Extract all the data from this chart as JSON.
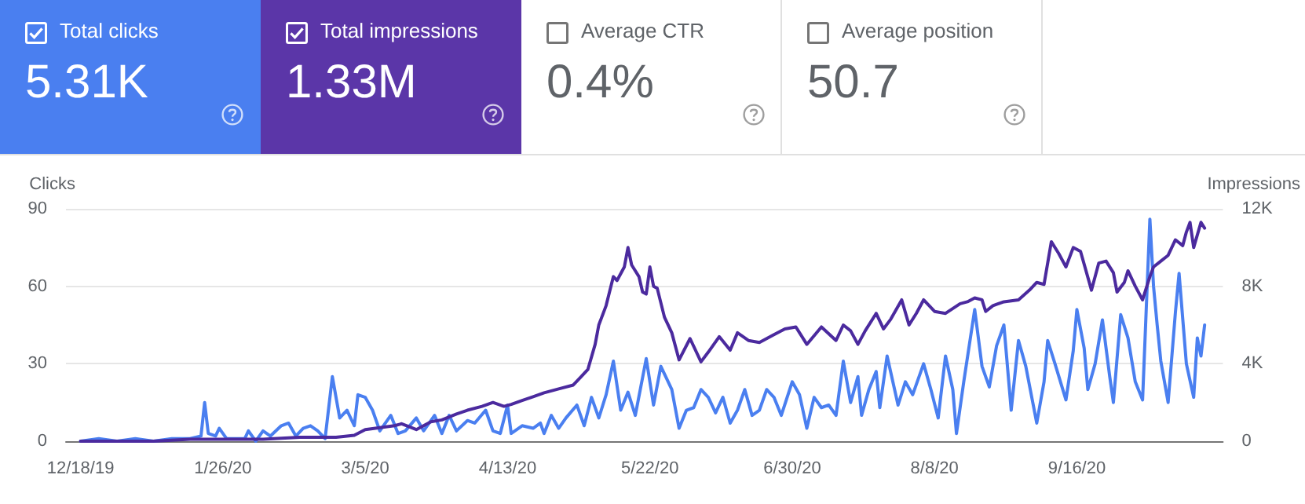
{
  "chart_data": [
    {
      "type": "other",
      "annotations": [
        "Total clicks",
        "5.31K",
        "Total impressions",
        "1.33M",
        "Average CTR",
        "0.4%",
        "Average position",
        "50.7"
      ],
      "colors": [
        "#4a7ff0",
        "#5b36a8",
        null,
        null
      ]
    },
    {
      "type": "line",
      "ylabel": "Clicks",
      "y2label": "Impressions",
      "xlim": [
        "2019-12-14",
        "2020-10-26"
      ],
      "xticks": [
        {
          "value": "2019-12-18",
          "label": "12/18/19"
        },
        {
          "value": "2020-01-26",
          "label": "1/26/20"
        },
        {
          "value": "2020-03-05",
          "label": "3/5/20"
        },
        {
          "value": "2020-04-13",
          "label": "4/13/20"
        },
        {
          "value": "2020-05-22",
          "label": "5/22/20"
        },
        {
          "value": "2020-06-30",
          "label": "6/30/20"
        },
        {
          "value": "2020-08-08",
          "label": "8/8/20"
        },
        {
          "value": "2020-09-16",
          "label": "9/16/20"
        }
      ],
      "ylim": [
        0,
        90
      ],
      "yticks": [
        0,
        30,
        60,
        90
      ],
      "y2lim": [
        0,
        12000
      ],
      "y2ticks": [
        0,
        {
          "value": 4000,
          "label": "4K"
        },
        {
          "value": 8000,
          "label": "8K"
        },
        {
          "value": 12000,
          "label": "12K"
        }
      ],
      "grid": "y",
      "series": [
        {
          "color": "#4a7ff0",
          "x": [
            "2019-12-18",
            "2019-12-23",
            "2019-12-28",
            "2020-01-02",
            "2020-01-07",
            "2020-01-12",
            "2020-01-17",
            "2020-01-20",
            "2020-01-21",
            "2020-01-22",
            "2020-01-24",
            "2020-01-25",
            "2020-01-27",
            "2020-02-01",
            "2020-02-02",
            "2020-02-04",
            "2020-02-06",
            "2020-02-08",
            "2020-02-11",
            "2020-02-13",
            "2020-02-15",
            "2020-02-17",
            "2020-02-19",
            "2020-02-21",
            "2020-02-23",
            "2020-02-25",
            "2020-02-27",
            "2020-02-29",
            "2020-03-02",
            "2020-03-03",
            "2020-03-05",
            "2020-03-07",
            "2020-03-09",
            "2020-03-12",
            "2020-03-14",
            "2020-03-16",
            "2020-03-19",
            "2020-03-21",
            "2020-03-24",
            "2020-03-26",
            "2020-03-28",
            "2020-03-30",
            "2020-04-02",
            "2020-04-04",
            "2020-04-07",
            "2020-04-09",
            "2020-04-11",
            "2020-04-13",
            "2020-04-14",
            "2020-04-17",
            "2020-04-20",
            "2020-04-22",
            "2020-04-23",
            "2020-04-25",
            "2020-04-27",
            "2020-04-29",
            "2020-05-02",
            "2020-05-04",
            "2020-05-06",
            "2020-05-08",
            "2020-05-10",
            "2020-05-12",
            "2020-05-14",
            "2020-05-16",
            "2020-05-18",
            "2020-05-21",
            "2020-05-23",
            "2020-05-25",
            "2020-05-28",
            "2020-05-30",
            "2020-06-01",
            "2020-06-03",
            "2020-06-05",
            "2020-06-07",
            "2020-06-09",
            "2020-06-11",
            "2020-06-13",
            "2020-06-15",
            "2020-06-17",
            "2020-06-19",
            "2020-06-21",
            "2020-06-23",
            "2020-06-25",
            "2020-06-27",
            "2020-06-30",
            "2020-07-02",
            "2020-07-04",
            "2020-07-06",
            "2020-07-08",
            "2020-07-10",
            "2020-07-12",
            "2020-07-14",
            "2020-07-16",
            "2020-07-18",
            "2020-07-19",
            "2020-07-21",
            "2020-07-23",
            "2020-07-24",
            "2020-07-26",
            "2020-07-29",
            "2020-07-31",
            "2020-08-02",
            "2020-08-05",
            "2020-08-07",
            "2020-08-09",
            "2020-08-11",
            "2020-08-13",
            "2020-08-14",
            "2020-08-16",
            "2020-08-19",
            "2020-08-21",
            "2020-08-23",
            "2020-08-25",
            "2020-08-27",
            "2020-08-29",
            "2020-08-31",
            "2020-09-02",
            "2020-09-05",
            "2020-09-07",
            "2020-09-08",
            "2020-09-10",
            "2020-09-13",
            "2020-09-15",
            "2020-09-16",
            "2020-09-18",
            "2020-09-19",
            "2020-09-21",
            "2020-09-23",
            "2020-09-25",
            "2020-09-26",
            "2020-09-28",
            "2020-09-30",
            "2020-10-02",
            "2020-10-04",
            "2020-10-06",
            "2020-10-07",
            "2020-10-08",
            "2020-10-09",
            "2020-10-11",
            "2020-10-13",
            "2020-10-14",
            "2020-10-16",
            "2020-10-18",
            "2020-10-19",
            "2020-10-20",
            "2020-10-21"
          ],
          "values": [
            0,
            1,
            0,
            1,
            0,
            1,
            1,
            2,
            15,
            3,
            2,
            5,
            1,
            1,
            4,
            0,
            4,
            2,
            6,
            7,
            2,
            5,
            6,
            4,
            1,
            25,
            9,
            12,
            6,
            18,
            17,
            12,
            4,
            10,
            3,
            4,
            9,
            4,
            10,
            3,
            10,
            4,
            8,
            7,
            12,
            4,
            3,
            14,
            3,
            6,
            5,
            7,
            3,
            10,
            5,
            9,
            14,
            6,
            17,
            9,
            18,
            31,
            12,
            19,
            10,
            32,
            14,
            29,
            20,
            5,
            12,
            13,
            20,
            17,
            11,
            17,
            7,
            12,
            20,
            10,
            12,
            20,
            17,
            10,
            23,
            18,
            5,
            17,
            13,
            14,
            10,
            31,
            15,
            25,
            10,
            20,
            27,
            13,
            33,
            14,
            23,
            18,
            30,
            20,
            9,
            33,
            20,
            3,
            23,
            51,
            29,
            21,
            37,
            45,
            12,
            39,
            29,
            7,
            23,
            39,
            30,
            16,
            35,
            51,
            36,
            20,
            30,
            47,
            25,
            15,
            49,
            40,
            23,
            16,
            86,
            60,
            45,
            31,
            15,
            50,
            65,
            30,
            17,
            40,
            33,
            45
          ]
        },
        {
          "color": "#4b2a9e",
          "axis": "y2",
          "x": [
            "2019-12-18",
            "2020-01-07",
            "2020-01-17",
            "2020-01-27",
            "2020-02-06",
            "2020-02-16",
            "2020-02-26",
            "2020-03-02",
            "2020-03-05",
            "2020-03-09",
            "2020-03-13",
            "2020-03-15",
            "2020-03-19",
            "2020-03-23",
            "2020-03-26",
            "2020-03-30",
            "2020-04-02",
            "2020-04-06",
            "2020-04-09",
            "2020-04-12",
            "2020-04-14",
            "2020-04-17",
            "2020-04-20",
            "2020-04-23",
            "2020-04-27",
            "2020-05-01",
            "2020-05-03",
            "2020-05-05",
            "2020-05-07",
            "2020-05-08",
            "2020-05-10",
            "2020-05-12",
            "2020-05-13",
            "2020-05-15",
            "2020-05-16",
            "2020-05-17",
            "2020-05-19",
            "2020-05-20",
            "2020-05-21",
            "2020-05-22",
            "2020-05-23",
            "2020-05-24",
            "2020-05-26",
            "2020-05-28",
            "2020-05-30",
            "2020-06-02",
            "2020-06-05",
            "2020-06-07",
            "2020-06-10",
            "2020-06-13",
            "2020-06-15",
            "2020-06-18",
            "2020-06-21",
            "2020-06-25",
            "2020-06-28",
            "2020-07-01",
            "2020-07-04",
            "2020-07-08",
            "2020-07-12",
            "2020-07-14",
            "2020-07-16",
            "2020-07-18",
            "2020-07-20",
            "2020-07-23",
            "2020-07-25",
            "2020-07-27",
            "2020-07-30",
            "2020-08-01",
            "2020-08-03",
            "2020-08-05",
            "2020-08-08",
            "2020-08-11",
            "2020-08-15",
            "2020-08-17",
            "2020-08-19",
            "2020-08-21",
            "2020-08-22",
            "2020-08-24",
            "2020-08-27",
            "2020-08-31",
            "2020-09-03",
            "2020-09-05",
            "2020-09-07",
            "2020-09-09",
            "2020-09-11",
            "2020-09-13",
            "2020-09-15",
            "2020-09-17",
            "2020-09-20",
            "2020-09-22",
            "2020-09-24",
            "2020-09-26",
            "2020-09-27",
            "2020-09-29",
            "2020-09-30",
            "2020-10-02",
            "2020-10-04",
            "2020-10-06",
            "2020-10-07",
            "2020-10-09",
            "2020-10-11",
            "2020-10-13",
            "2020-10-15",
            "2020-10-16",
            "2020-10-17",
            "2020-10-18",
            "2020-10-20",
            "2020-10-21"
          ],
          "values": [
            0,
            0,
            100,
            100,
            100,
            200,
            200,
            300,
            600,
            700,
            800,
            900,
            600,
            1000,
            1100,
            1400,
            1600,
            1800,
            2000,
            1800,
            1900,
            2100,
            2300,
            2500,
            2700,
            2900,
            3300,
            3700,
            5000,
            6000,
            7000,
            8500,
            8300,
            9000,
            10000,
            9100,
            8500,
            7700,
            7600,
            9000,
            8000,
            7900,
            6400,
            5600,
            4200,
            5300,
            4100,
            4600,
            5400,
            4700,
            5600,
            5200,
            5100,
            5500,
            5800,
            5900,
            5000,
            5900,
            5200,
            6000,
            5700,
            5000,
            5700,
            6600,
            5800,
            6300,
            7300,
            6000,
            6600,
            7300,
            6700,
            6600,
            7100,
            7200,
            7400,
            7300,
            6700,
            7000,
            7200,
            7300,
            7800,
            8200,
            8100,
            10300,
            9700,
            9000,
            10000,
            9800,
            7800,
            9200,
            9300,
            8700,
            7700,
            8200,
            8800,
            8000,
            7300,
            8500,
            9000,
            9300,
            9600,
            10400,
            10100,
            10800,
            11300,
            10000,
            11300,
            11000
          ]
        }
      ]
    }
  ]
}
